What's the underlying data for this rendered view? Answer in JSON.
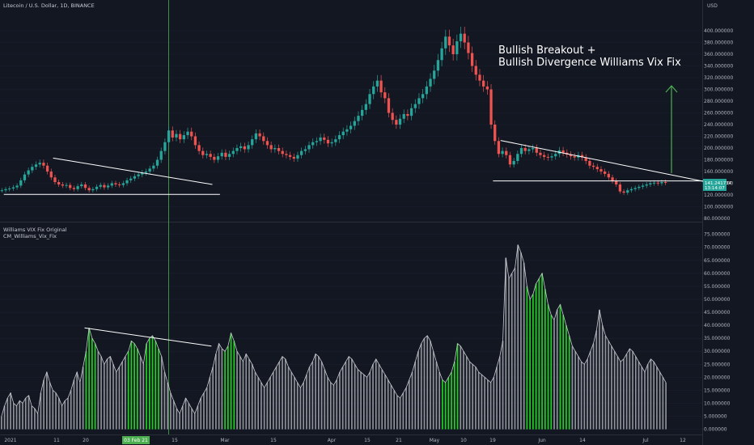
{
  "header": {
    "symbol": "Litecoin / U.S. Dollar, 1D, BINANCE",
    "indicator1": "Williams VIX Fix Original",
    "indicator2": "CM_Williams_Vix_Fix"
  },
  "annotation": {
    "line1": "Bullish Breakout +",
    "line2": "Bullish Divergence Williams Vix Fix"
  },
  "price_badge": {
    "value": "141.241734",
    "countdown": "13:14:07"
  },
  "unit": "USD",
  "colors": {
    "background": "#131722",
    "up": "#26a69a",
    "down": "#ef5350",
    "vix_bar": "#8f9298",
    "vix_signal": "#1fd31f",
    "vertical_marker": "#4caf50",
    "arrow": "#4caf50"
  },
  "chart_data": [
    {
      "type": "candlestick",
      "title": "Litecoin / U.S. Dollar, 1D, BINANCE",
      "ylabel": "USD",
      "ylim": [
        80,
        440
      ],
      "y_ticks": [
        "400.000000",
        "380.000000",
        "360.000000",
        "340.000000",
        "320.000000",
        "300.000000",
        "280.000000",
        "260.000000",
        "240.000000",
        "220.000000",
        "200.000000",
        "180.000000",
        "160.000000",
        "140.000000",
        "120.000000",
        "100.000000",
        "80.000000"
      ],
      "x_ticks": [
        "2021",
        "11",
        "20",
        "03 Feb 21",
        "15",
        "Mar",
        "15",
        "Apr",
        "15",
        "21",
        "May",
        "10",
        "19",
        "Jun",
        "14",
        "Jul",
        "12"
      ],
      "last_value": 141.24,
      "close_series": [
        128,
        130,
        131,
        133,
        136,
        145,
        155,
        162,
        168,
        172,
        175,
        170,
        160,
        150,
        142,
        138,
        136,
        137,
        132,
        130,
        135,
        138,
        132,
        128,
        130,
        134,
        137,
        133,
        136,
        140,
        138,
        137,
        140,
        145,
        148,
        152,
        155,
        158,
        160,
        165,
        170,
        180,
        195,
        210,
        230,
        218,
        224,
        215,
        222,
        228,
        220,
        205,
        195,
        188,
        190,
        185,
        180,
        186,
        192,
        185,
        190,
        195,
        200,
        203,
        198,
        205,
        215,
        225,
        220,
        212,
        205,
        198,
        200,
        195,
        190,
        188,
        185,
        182,
        188,
        195,
        198,
        205,
        210,
        212,
        218,
        214,
        208,
        210,
        215,
        222,
        228,
        232,
        238,
        246,
        255,
        265,
        275,
        292,
        305,
        315,
        295,
        285,
        260,
        248,
        240,
        250,
        258,
        255,
        268,
        275,
        285,
        292,
        305,
        318,
        332,
        350,
        370,
        390,
        375,
        360,
        382,
        395,
        380,
        362,
        340,
        325,
        315,
        305,
        300,
        240,
        212,
        190,
        195,
        188,
        172,
        178,
        190,
        200,
        195,
        198,
        200,
        192,
        188,
        185,
        184,
        186,
        190,
        196,
        192,
        189,
        186,
        184,
        188,
        184,
        178,
        170,
        168,
        164,
        160,
        156,
        150,
        144,
        138,
        126,
        124,
        128,
        130,
        132,
        134,
        136,
        138,
        140,
        141,
        140,
        142,
        141
      ]
    },
    {
      "type": "bar",
      "title": "Williams VIX Fix Original",
      "ylim": [
        -2,
        78
      ],
      "y_ticks": [
        "75.000000",
        "70.000000",
        "65.000000",
        "60.000000",
        "55.000000",
        "50.000000",
        "45.000000",
        "40.000000",
        "35.000000",
        "30.000000",
        "25.000000",
        "20.000000",
        "15.000000",
        "10.000000",
        "5.000000",
        "0.000000"
      ],
      "values": [
        5,
        9,
        12,
        14,
        10,
        9,
        11,
        10,
        12,
        13,
        9,
        8,
        6,
        14,
        19,
        22,
        18,
        15,
        14,
        12,
        9,
        11,
        12,
        15,
        19,
        22,
        18,
        24,
        30,
        39,
        35,
        33,
        30,
        28,
        25,
        27,
        28,
        25,
        22,
        24,
        26,
        28,
        30,
        34,
        33,
        31,
        28,
        25,
        33,
        35,
        36,
        34,
        31,
        28,
        22,
        18,
        14,
        11,
        8,
        6,
        9,
        12,
        10,
        8,
        6,
        9,
        12,
        14,
        16,
        20,
        24,
        29,
        33,
        31,
        30,
        32,
        37,
        34,
        30,
        28,
        26,
        29,
        27,
        25,
        22,
        20,
        18,
        16,
        18,
        20,
        22,
        24,
        26,
        28,
        27,
        24,
        22,
        20,
        18,
        16,
        18,
        21,
        24,
        26,
        29,
        28,
        26,
        23,
        20,
        18,
        17,
        19,
        22,
        24,
        26,
        28,
        27,
        25,
        23,
        22,
        21,
        20,
        22,
        25,
        27,
        25,
        23,
        21,
        19,
        17,
        15,
        13,
        12,
        14,
        16,
        19,
        22,
        26,
        30,
        33,
        35,
        36,
        34,
        30,
        26,
        22,
        19,
        18,
        20,
        22,
        26,
        33,
        32,
        30,
        28,
        26,
        25,
        24,
        22,
        21,
        20,
        19,
        18,
        20,
        24,
        28,
        34,
        66,
        58,
        60,
        62,
        71,
        68,
        64,
        55,
        50,
        52,
        56,
        58,
        60,
        54,
        48,
        44,
        42,
        46,
        48,
        44,
        40,
        36,
        32,
        30,
        28,
        26,
        25,
        27,
        30,
        33,
        38,
        46,
        40,
        36,
        34,
        32,
        30,
        28,
        26,
        27,
        29,
        31,
        30,
        28,
        26,
        24,
        22,
        25,
        27,
        26,
        24,
        22,
        20,
        18
      ]
    }
  ]
}
